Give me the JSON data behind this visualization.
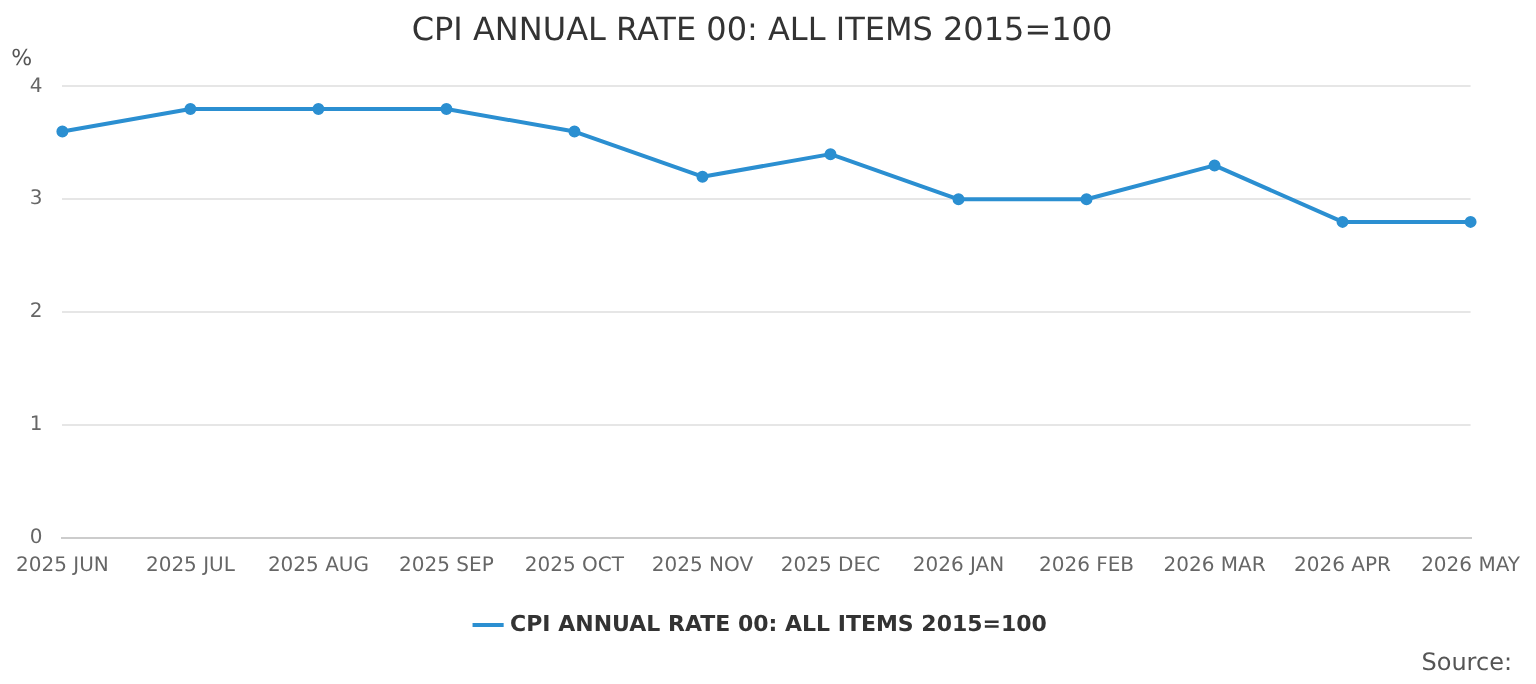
{
  "chart_data": {
    "type": "line",
    "title": "CPI ANNUAL RATE 00: ALL ITEMS 2015=100",
    "ylabel": "%",
    "categories": [
      "2025 JUN",
      "2025 JUL",
      "2025 AUG",
      "2025 SEP",
      "2025 OCT",
      "2025 NOV",
      "2025 DEC",
      "2026 JAN",
      "2026 FEB",
      "2026 MAR",
      "2026 APR",
      "2026 MAY"
    ],
    "series": [
      {
        "name": "CPI ANNUAL RATE 00: ALL ITEMS 2015=100",
        "color": "#2b8fd1",
        "values": [
          3.6,
          3.8,
          3.8,
          3.8,
          3.6,
          3.2,
          3.4,
          3.0,
          3.0,
          3.3,
          2.8,
          2.8
        ]
      }
    ],
    "ylim": [
      0,
      4
    ],
    "yticks": [
      0,
      1,
      2,
      3,
      4
    ],
    "grid": "y",
    "legend": "bottom",
    "marker": "circle",
    "line_style": "solid",
    "annotations": [
      "Source:"
    ]
  }
}
